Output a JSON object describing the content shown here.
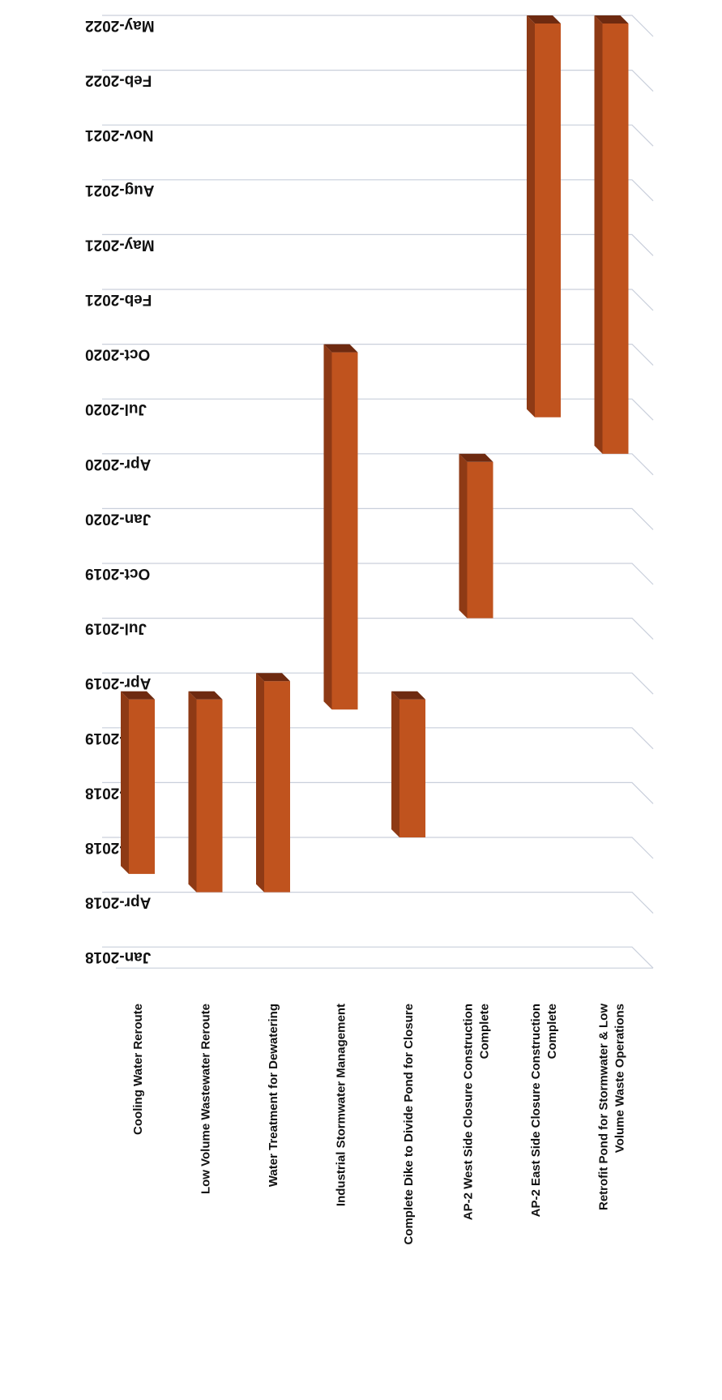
{
  "chart_data": {
    "type": "bar",
    "orientation": "floating-range",
    "title": "",
    "xlabel": "",
    "ylabel": "",
    "y_ticks": [
      "Jan-2018",
      "Apr-2018",
      "Jul-2018",
      "Oct-2018",
      "Jan-2019",
      "Apr-2019",
      "Jul-2019",
      "Oct-2019",
      "Jan-2020",
      "Apr-2020",
      "Jul-2020",
      "Oct-2020",
      "Feb-2021",
      "May-2021",
      "Aug-2021",
      "Nov-2021",
      "Feb-2022",
      "May-2022"
    ],
    "categories": [
      "Cooling Water Reroute",
      "Low Volume Wastewater Reroute",
      "Water Treatment for Dewatering",
      "Industrial Stormwater Management",
      "Complete Dike to Divide Pond for Closure",
      "AP-2 West Side Closure Construction Complete",
      "AP-2 East Side Closure Construction Complete",
      "Retrofit Pond for Stormwater & Low Volume Waste Operations"
    ],
    "category_lines": [
      [
        "Cooling Water Reroute"
      ],
      [
        "Low Volume Wastewater Reroute"
      ],
      [
        "Water Treatment for Dewatering"
      ],
      [
        "Industrial Stormwater Management"
      ],
      [
        "Complete Dike to Divide Pond for Closure"
      ],
      [
        "AP-2 West Side Closure Construction",
        "Complete"
      ],
      [
        "AP-2 East Side Closure Construction",
        "Complete"
      ],
      [
        "Retrofit Pond for Stormwater & Low",
        "Volume Waste Operations"
      ]
    ],
    "ranges": [
      {
        "start": "2018-05",
        "end": "2019-03"
      },
      {
        "start": "2018-04",
        "end": "2019-03"
      },
      {
        "start": "2018-04",
        "end": "2019-04"
      },
      {
        "start": "2019-02",
        "end": "2020-10"
      },
      {
        "start": "2018-07",
        "end": "2019-03"
      },
      {
        "start": "2019-07",
        "end": "2020-04"
      },
      {
        "start": "2020-06",
        "end": "2022-05"
      },
      {
        "start": "2020-04",
        "end": "2022-05"
      }
    ],
    "grid": true,
    "rotation": "180deg",
    "colors": {
      "bar": "#c0531e",
      "bar_top": "#6e2a10",
      "bar_side": "#8e3a15",
      "grid": "#c9cfdb"
    }
  }
}
